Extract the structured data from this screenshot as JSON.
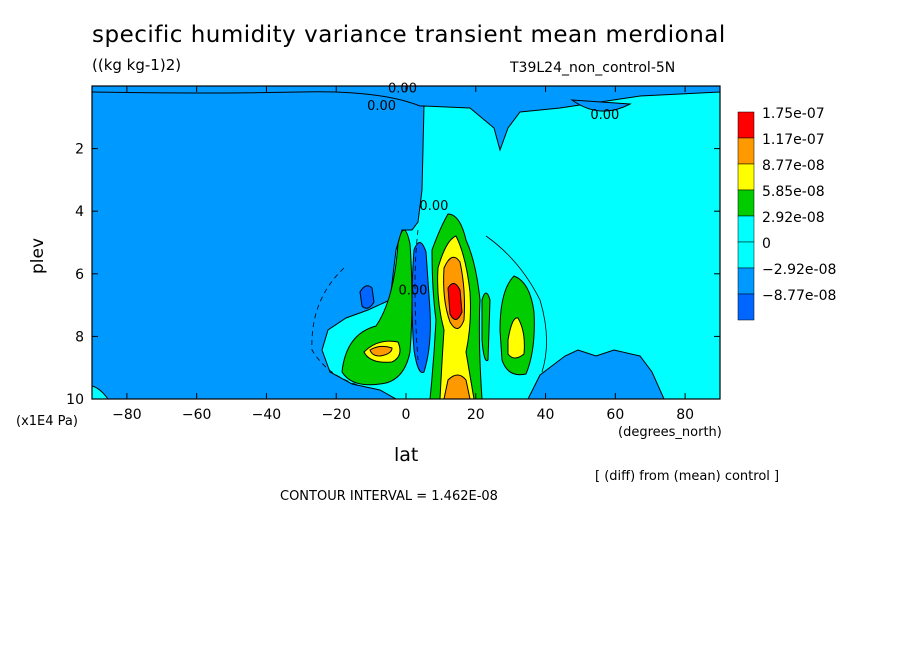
{
  "chart_data": {
    "type": "heatmap",
    "title": "specific humidity variance transient mean merdional",
    "units_label": "((kg kg-1)2)",
    "run_label": "T39L24_non_control-5N",
    "xlabel": "lat",
    "x_units": "(degrees_north)",
    "ylabel": "plev",
    "y_units": "(x1E4 Pa)",
    "x_range": [
      -90,
      90
    ],
    "y_range": [
      0,
      10
    ],
    "y_inverted": true,
    "x_ticks": [
      -80,
      -60,
      -40,
      -20,
      0,
      20,
      40,
      60,
      80
    ],
    "x_tick_labels": [
      "−80",
      "−60",
      "−40",
      "−20",
      "0",
      "20",
      "40",
      "60",
      "80"
    ],
    "y_ticks": [
      2,
      4,
      6,
      8,
      10
    ],
    "y_tick_labels": [
      "2",
      "4",
      "6",
      "8",
      "10"
    ],
    "contour_labels": [
      {
        "text": "0.00",
        "lat": -1,
        "plev": 0.05
      },
      {
        "text": "0.00",
        "lat": -7,
        "plev": 0.6
      },
      {
        "text": "0.00",
        "lat": 57,
        "plev": 0.9
      },
      {
        "text": "0.00",
        "lat": 8,
        "plev": 3.8
      },
      {
        "text": "0.00",
        "lat": 2,
        "plev": 6.5
      }
    ],
    "legend": {
      "labels": [
        "1.75e-07",
        "1.17e-07",
        "8.77e-08",
        "5.85e-08",
        "2.92e-08",
        "0",
        "−2.92e-08",
        "−8.77e-08"
      ],
      "colors": [
        "#ff0000",
        "#ff9900",
        "#ffff00",
        "#00cc00",
        "#00ffff",
        "#00ffff",
        "#0099ff",
        "#0066ff"
      ]
    },
    "regions": [
      {
        "name": "background",
        "color": "#00ffff",
        "lat": [
          -90,
          90
        ],
        "plev": [
          0,
          10
        ]
      },
      {
        "name": "upper-negative-band",
        "color": "#0099ff",
        "note": "north polar upper levels",
        "lat": [
          -90,
          90
        ],
        "plev": [
          0,
          0.2
        ]
      },
      {
        "name": "southern-negative",
        "color": "#0099ff",
        "lat": [
          -90,
          4
        ],
        "plev": [
          0,
          10
        ]
      },
      {
        "name": "equatorial-negative-column",
        "color": "#0066ff",
        "lat": [
          3,
          7
        ],
        "plev": [
          5.5,
          9.2
        ]
      },
      {
        "name": "main-positive-core",
        "color": "#ff0000",
        "lat": [
          11,
          15
        ],
        "plev": [
          6.4,
          7.5
        ]
      },
      {
        "name": "secondary-positive-core",
        "color": "#ffff00",
        "lat": [
          29,
          34
        ],
        "plev": [
          7.8,
          8.6
        ]
      },
      {
        "name": "southern-positive-core",
        "color": "#ffff00",
        "lat": [
          -13,
          -6
        ],
        "plev": [
          8.1,
          8.7
        ]
      }
    ],
    "colors": {
      "background": "#00ffff",
      "negative": "#0099ff",
      "strong_negative": "#0066ff",
      "level1": "#00cc00",
      "level2": "#ffff00",
      "level3": "#ff9900",
      "level4": "#ff0000"
    }
  },
  "annotations": {
    "diff_note": "[ (diff) from (mean) control ]",
    "contour_interval": "CONTOUR INTERVAL = 1.462E-08"
  }
}
